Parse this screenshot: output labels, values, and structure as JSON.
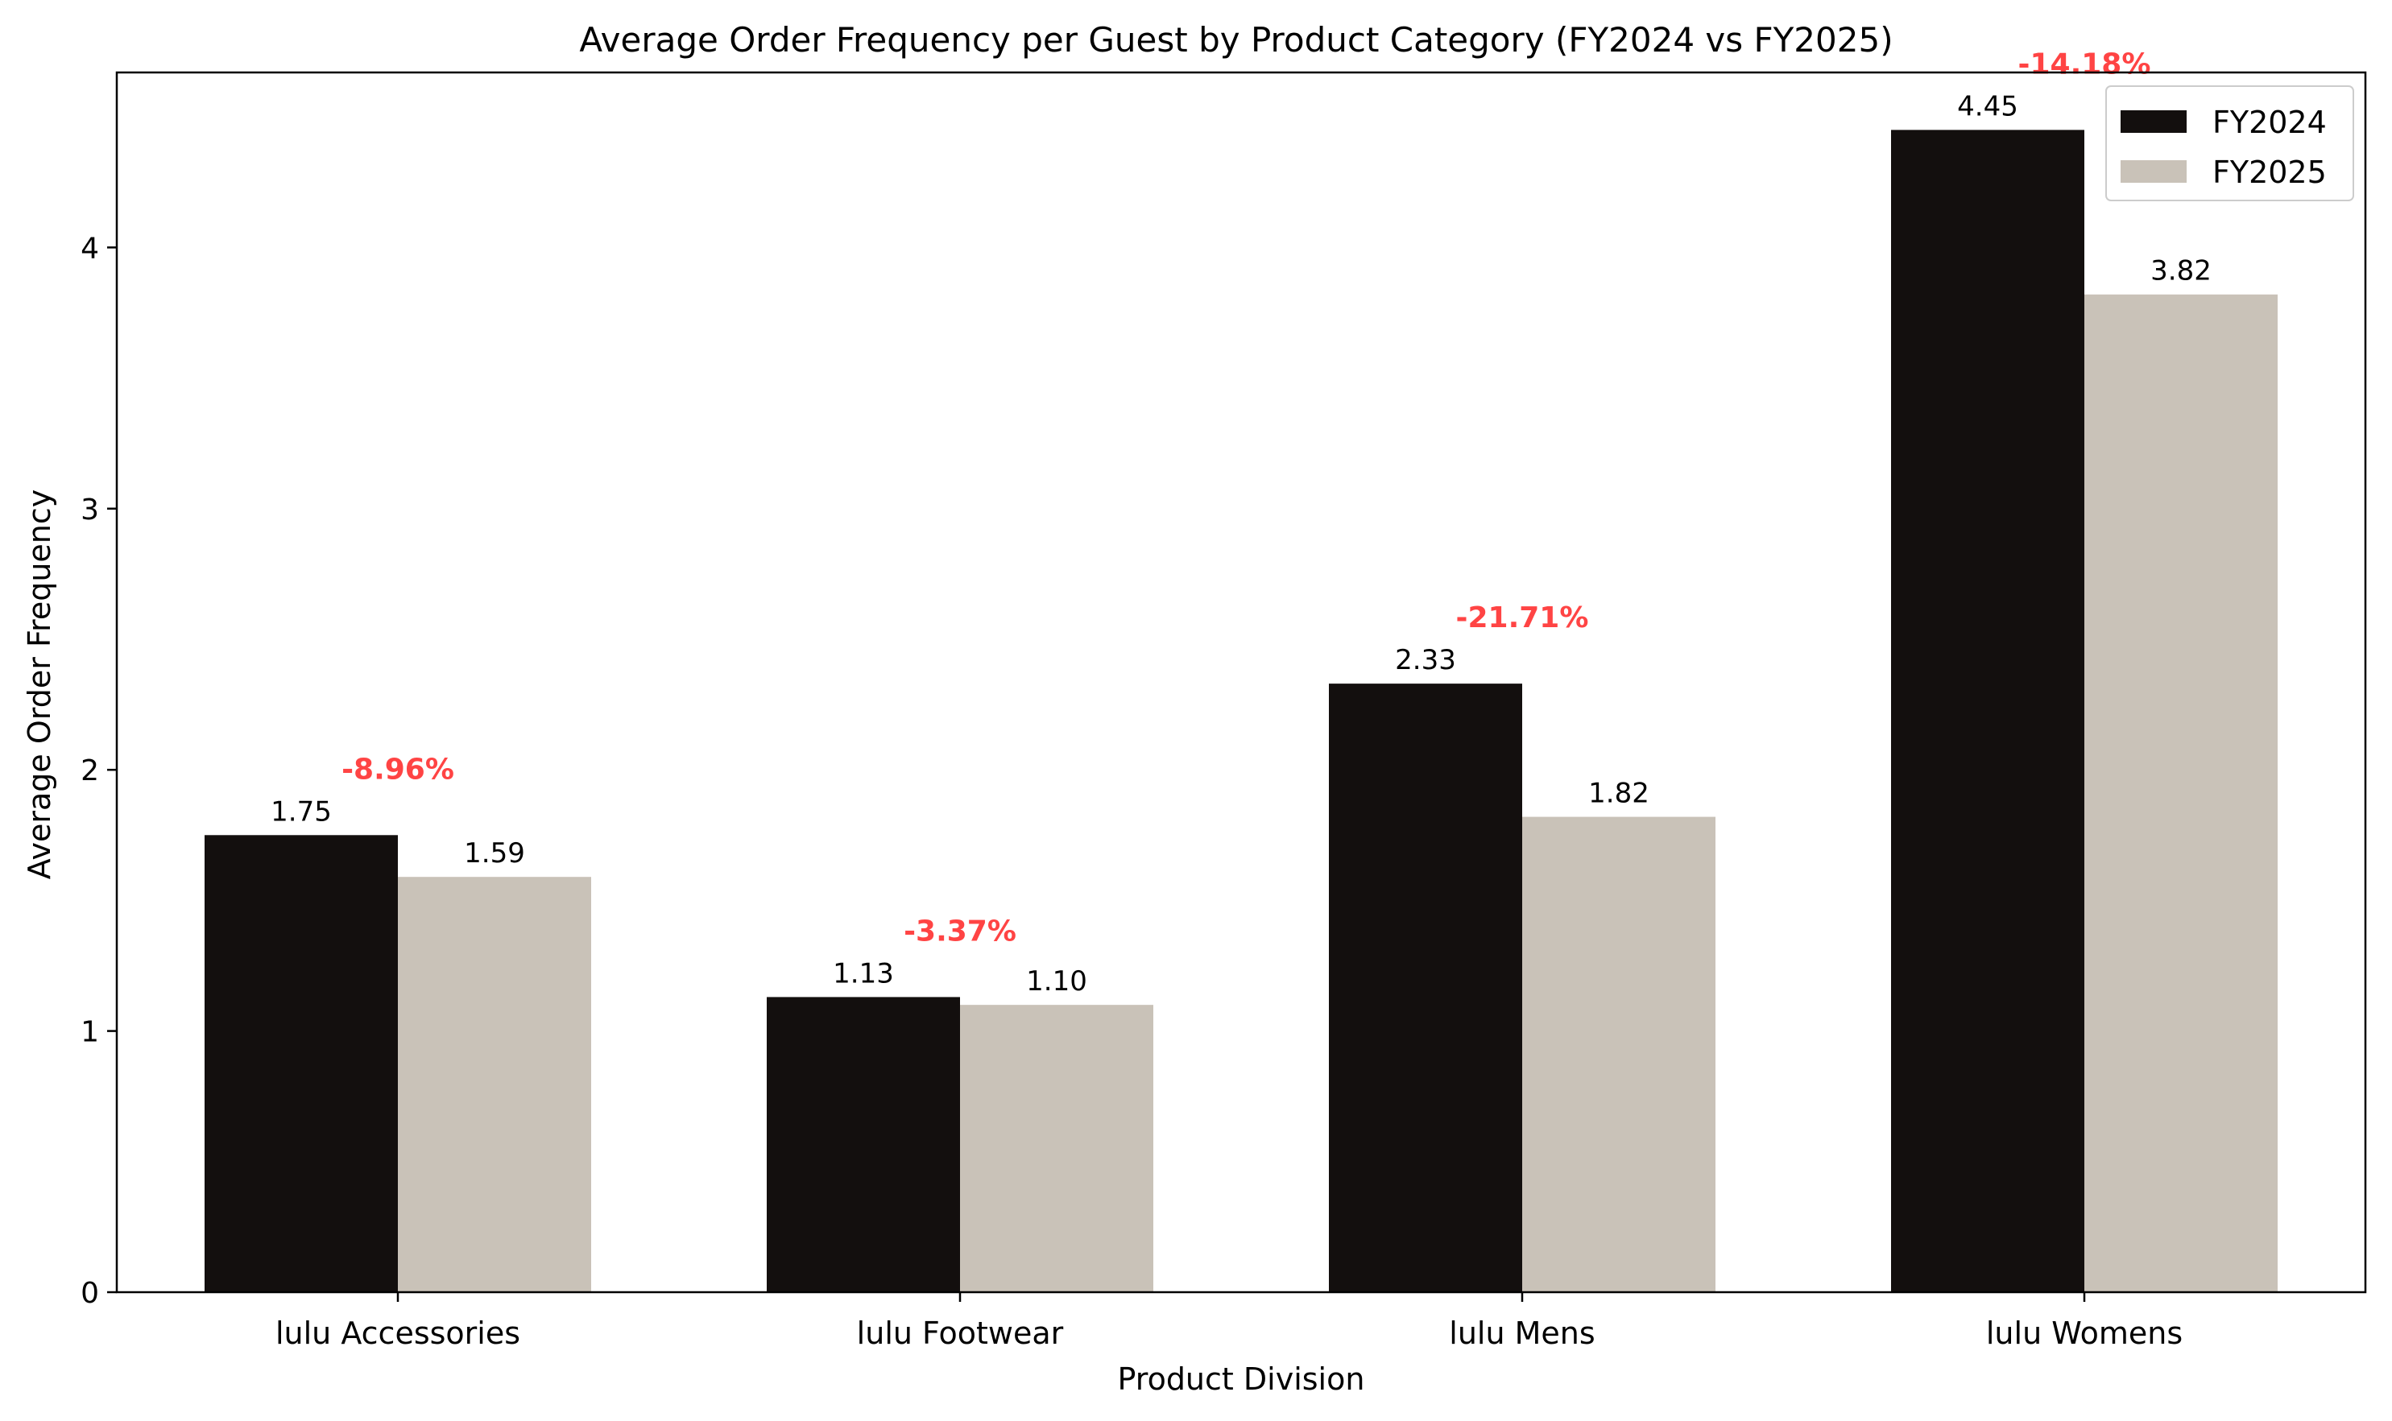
{
  "chart_data": {
    "type": "bar",
    "title": "Average Order Frequency per Guest by Product Category (FY2024 vs FY2025)",
    "xlabel": "Product Division",
    "ylabel": "Average Order Frequency",
    "categories": [
      "lulu Accessories",
      "lulu Footwear",
      "lulu Mens",
      "lulu Womens"
    ],
    "series": [
      {
        "name": "FY2024",
        "values": [
          1.75,
          1.13,
          2.33,
          4.45
        ],
        "labels": [
          "1.75",
          "1.13",
          "2.33",
          "4.45"
        ],
        "color": "#130f0e"
      },
      {
        "name": "FY2025",
        "values": [
          1.59,
          1.1,
          1.82,
          3.82
        ],
        "labels": [
          "1.59",
          "1.10",
          "1.82",
          "3.82"
        ],
        "color": "#c9c2b8"
      }
    ],
    "change_labels": [
      "-8.96%",
      "-3.37%",
      "-21.71%",
      "-14.18%"
    ],
    "change_color": "#ff4444",
    "yticks": [
      0,
      1,
      2,
      3,
      4
    ],
    "ytick_labels": [
      "0",
      "1",
      "2",
      "3",
      "4"
    ],
    "ylim": [
      0,
      4.67
    ],
    "grid": false,
    "legend_position": "top-right"
  }
}
